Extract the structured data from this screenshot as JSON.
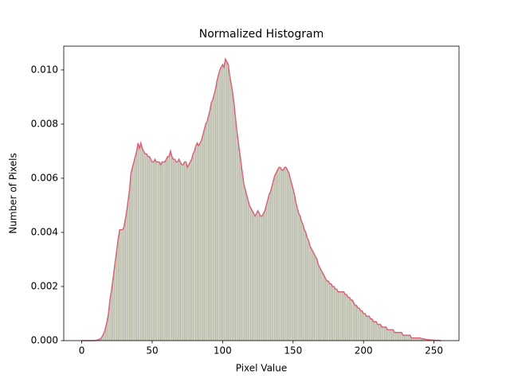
{
  "chart_data": {
    "type": "histogram",
    "title": "Normalized Histogram",
    "x_label": "Pixel Value",
    "y_label": "Number of Pixels",
    "color": "#b5b8a4",
    "line_color": "#d9647a",
    "xlim": [
      -12.75,
      267.75
    ],
    "xticks": [
      0,
      50,
      100,
      150,
      200,
      250
    ],
    "ylim": [
      0,
      0.01088
    ],
    "yticks": [
      {
        "value": 0,
        "label": "0.000"
      },
      {
        "value": 0.002,
        "label": "0.002"
      },
      {
        "value": 0.004,
        "label": "0.004"
      },
      {
        "value": 0.006,
        "label": "0.006"
      },
      {
        "value": 0.008,
        "label": "0.008"
      },
      {
        "value": 0.01,
        "label": "0.010"
      }
    ],
    "bins": [
      -0.5,
      0.5,
      1.5,
      2.5,
      3.5,
      4.5,
      5.5,
      6.5,
      7.5,
      8.5,
      9.5,
      10.5,
      11.5,
      12.5,
      13.5,
      14.5,
      15.5,
      16.5,
      17.5,
      18.5,
      19.5,
      20.5,
      21.5,
      22.5,
      23.5,
      24.5,
      25.5,
      26.5,
      27.5,
      28.5,
      29.5,
      30.5,
      31.5,
      32.5,
      33.5,
      34.5,
      35.5,
      36.5,
      37.5,
      38.5,
      39.5,
      40.5,
      41.5,
      42.5,
      43.5,
      44.5,
      45.5,
      46.5,
      47.5,
      48.5,
      49.5,
      50.5,
      51.5,
      52.5,
      53.5,
      54.5,
      55.5,
      56.5,
      57.5,
      58.5,
      59.5,
      60.5,
      61.5,
      62.5,
      63.5,
      64.5,
      65.5,
      66.5,
      67.5,
      68.5,
      69.5,
      70.5,
      71.5,
      72.5,
      73.5,
      74.5,
      75.5,
      76.5,
      77.5,
      78.5,
      79.5,
      80.5,
      81.5,
      82.5,
      83.5,
      84.5,
      85.5,
      86.5,
      87.5,
      88.5,
      89.5,
      90.5,
      91.5,
      92.5,
      93.5,
      94.5,
      95.5,
      96.5,
      97.5,
      98.5,
      99.5,
      100.5,
      101.5,
      102.5,
      103.5,
      104.5,
      105.5,
      106.5,
      107.5,
      108.5,
      109.5,
      110.5,
      111.5,
      112.5,
      113.5,
      114.5,
      115.5,
      116.5,
      117.5,
      118.5,
      119.5,
      120.5,
      121.5,
      122.5,
      123.5,
      124.5,
      125.5,
      126.5,
      127.5,
      128.5,
      129.5,
      130.5,
      131.5,
      132.5,
      133.5,
      134.5,
      135.5,
      136.5,
      137.5,
      138.5,
      139.5,
      140.5,
      141.5,
      142.5,
      143.5,
      144.5,
      145.5,
      146.5,
      147.5,
      148.5,
      149.5,
      150.5,
      151.5,
      152.5,
      153.5,
      154.5,
      155.5,
      156.5,
      157.5,
      158.5,
      159.5,
      160.5,
      161.5,
      162.5,
      163.5,
      164.5,
      165.5,
      166.5,
      167.5,
      168.5,
      169.5,
      170.5,
      171.5,
      172.5,
      173.5,
      174.5,
      175.5,
      176.5,
      177.5,
      178.5,
      179.5,
      180.5,
      181.5,
      182.5,
      183.5,
      184.5,
      185.5,
      186.5,
      187.5,
      188.5,
      189.5,
      190.5,
      191.5,
      192.5,
      193.5,
      194.5,
      195.5,
      196.5,
      197.5,
      198.5,
      199.5,
      200.5,
      201.5,
      202.5,
      203.5,
      204.5,
      205.5,
      206.5,
      207.5,
      208.5,
      209.5,
      210.5,
      211.5,
      212.5,
      213.5,
      214.5,
      215.5,
      216.5,
      217.5,
      218.5,
      219.5,
      220.5,
      221.5,
      222.5,
      223.5,
      224.5,
      225.5,
      226.5,
      227.5,
      228.5,
      229.5,
      230.5,
      231.5,
      232.5,
      233.5,
      234.5,
      235.5,
      236.5,
      237.5,
      238.5,
      239.5,
      240.5,
      241.5,
      242.5,
      243.5,
      244.5,
      245.5,
      246.5,
      247.5,
      248.5,
      249.5,
      250.5,
      251.5,
      252.5,
      253.5,
      254.5,
      255.5
    ],
    "values": [
      0,
      0,
      0,
      0,
      0,
      0,
      0,
      0,
      0,
      0,
      1e-05,
      2e-05,
      4e-05,
      6e-05,
      0.0001,
      0.0002,
      0.0003,
      0.0005,
      0.0007,
      0.001,
      0.0015,
      0.0018,
      0.0022,
      0.0026,
      0.003,
      0.0034,
      0.0038,
      0.0041,
      0.0041,
      0.0041,
      0.0042,
      0.0045,
      0.0048,
      0.0052,
      0.0056,
      0.0062,
      0.0064,
      0.0066,
      0.0068,
      0.007,
      0.0073,
      0.0071,
      0.0073,
      0.0071,
      0.007,
      0.0069,
      0.0069,
      0.0068,
      0.0068,
      0.0067,
      0.0066,
      0.0066,
      0.0067,
      0.0066,
      0.0066,
      0.0066,
      0.0065,
      0.0066,
      0.0066,
      0.0066,
      0.0067,
      0.0068,
      0.0068,
      0.007,
      0.0068,
      0.0067,
      0.0067,
      0.0066,
      0.0066,
      0.0067,
      0.0066,
      0.0065,
      0.0065,
      0.0066,
      0.0066,
      0.0064,
      0.0065,
      0.0066,
      0.0067,
      0.0069,
      0.007,
      0.0072,
      0.0073,
      0.0072,
      0.0073,
      0.0074,
      0.0076,
      0.0078,
      0.008,
      0.0081,
      0.0083,
      0.0085,
      0.0088,
      0.0089,
      0.0091,
      0.0093,
      0.0096,
      0.0098,
      0.01,
      0.0101,
      0.0102,
      0.0101,
      0.0104,
      0.0103,
      0.0102,
      0.0098,
      0.0095,
      0.0092,
      0.0088,
      0.0083,
      0.0078,
      0.0074,
      0.007,
      0.0066,
      0.0062,
      0.0058,
      0.0056,
      0.0054,
      0.0052,
      0.005,
      0.0049,
      0.0048,
      0.0047,
      0.0046,
      0.0047,
      0.0048,
      0.0047,
      0.0046,
      0.0046,
      0.0047,
      0.0048,
      0.005,
      0.0052,
      0.0054,
      0.0055,
      0.0057,
      0.0059,
      0.0061,
      0.0062,
      0.0063,
      0.0064,
      0.0064,
      0.0063,
      0.0063,
      0.0064,
      0.0064,
      0.0063,
      0.0062,
      0.006,
      0.0058,
      0.0056,
      0.0054,
      0.0051,
      0.0049,
      0.0047,
      0.0046,
      0.0044,
      0.0043,
      0.0041,
      0.004,
      0.0038,
      0.0037,
      0.0035,
      0.0034,
      0.0033,
      0.0032,
      0.0031,
      0.003,
      0.0028,
      0.0027,
      0.0026,
      0.0025,
      0.0024,
      0.0023,
      0.0022,
      0.0022,
      0.0021,
      0.0021,
      0.002,
      0.002,
      0.0019,
      0.0019,
      0.0018,
      0.0018,
      0.0018,
      0.0018,
      0.0018,
      0.0017,
      0.0017,
      0.0016,
      0.0016,
      0.0015,
      0.0015,
      0.0014,
      0.0013,
      0.0013,
      0.0012,
      0.0012,
      0.0011,
      0.0011,
      0.001,
      0.001,
      0.0009,
      0.0009,
      0.0009,
      0.0008,
      0.0008,
      0.0007,
      0.0007,
      0.0007,
      0.0006,
      0.0006,
      0.0006,
      0.0005,
      0.0005,
      0.0005,
      0.0005,
      0.0004,
      0.0004,
      0.0004,
      0.0004,
      0.0004,
      0.0003,
      0.0003,
      0.0003,
      0.0003,
      0.0003,
      0.0003,
      0.0002,
      0.0002,
      0.0002,
      0.0002,
      0.0002,
      0.0002,
      0.0001,
      0.0001,
      0.0001,
      0.0001,
      0.0001,
      0.0001,
      0.0001,
      8e-05,
      7e-05,
      6e-05,
      5e-05,
      4e-05,
      3e-05,
      3e-05,
      2e-05,
      2e-05,
      2e-05,
      1e-05,
      1e-05,
      1e-05,
      0,
      0
    ]
  }
}
